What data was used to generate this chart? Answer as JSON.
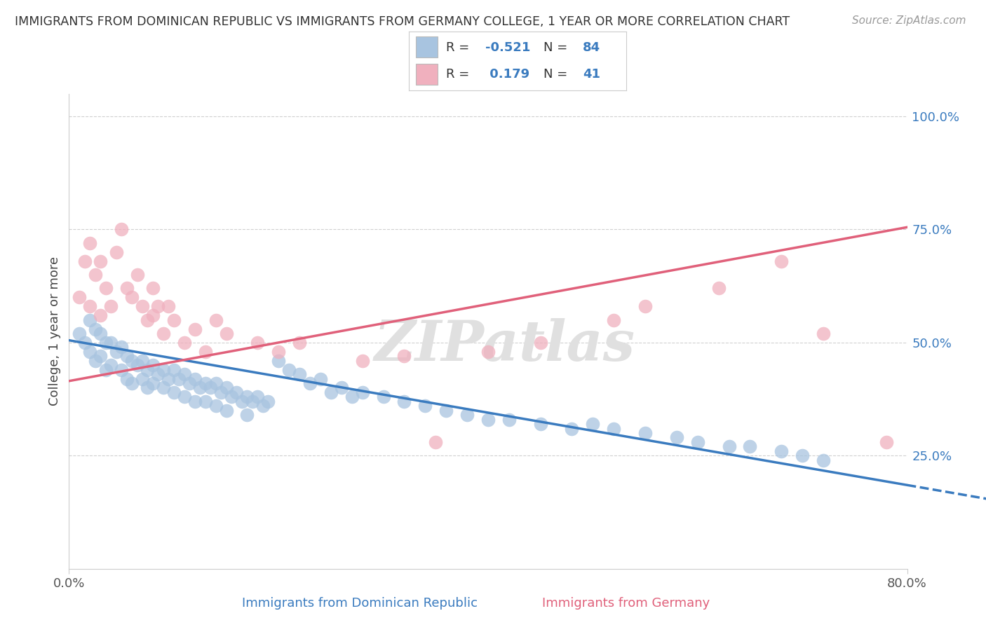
{
  "title": "IMMIGRANTS FROM DOMINICAN REPUBLIC VS IMMIGRANTS FROM GERMANY COLLEGE, 1 YEAR OR MORE CORRELATION CHART",
  "source": "Source: ZipAtlas.com",
  "ylabel": "College, 1 year or more",
  "xlabel_blue": "Immigrants from Dominican Republic",
  "xlabel_pink": "Immigrants from Germany",
  "xlim": [
    0.0,
    0.8
  ],
  "ylim": [
    0.0,
    1.05
  ],
  "y_ticks": [
    0.25,
    0.5,
    0.75,
    1.0
  ],
  "y_tick_labels": [
    "25.0%",
    "50.0%",
    "75.0%",
    "100.0%"
  ],
  "blue_R": -0.521,
  "blue_N": 84,
  "pink_R": 0.179,
  "pink_N": 41,
  "blue_color": "#a8c4e0",
  "pink_color": "#f0b0be",
  "blue_line_color": "#3a7bbf",
  "pink_line_color": "#e0607a",
  "blue_scatter_x": [
    0.01,
    0.015,
    0.02,
    0.02,
    0.025,
    0.025,
    0.03,
    0.03,
    0.035,
    0.035,
    0.04,
    0.04,
    0.045,
    0.05,
    0.05,
    0.055,
    0.055,
    0.06,
    0.06,
    0.065,
    0.07,
    0.07,
    0.075,
    0.075,
    0.08,
    0.08,
    0.085,
    0.09,
    0.09,
    0.095,
    0.1,
    0.1,
    0.105,
    0.11,
    0.11,
    0.115,
    0.12,
    0.12,
    0.125,
    0.13,
    0.13,
    0.135,
    0.14,
    0.14,
    0.145,
    0.15,
    0.15,
    0.155,
    0.16,
    0.165,
    0.17,
    0.17,
    0.175,
    0.18,
    0.185,
    0.19,
    0.2,
    0.21,
    0.22,
    0.23,
    0.24,
    0.25,
    0.26,
    0.27,
    0.28,
    0.3,
    0.32,
    0.34,
    0.36,
    0.38,
    0.4,
    0.42,
    0.45,
    0.48,
    0.5,
    0.52,
    0.55,
    0.58,
    0.6,
    0.63,
    0.65,
    0.68,
    0.7,
    0.72
  ],
  "blue_scatter_y": [
    0.52,
    0.5,
    0.55,
    0.48,
    0.53,
    0.46,
    0.52,
    0.47,
    0.5,
    0.44,
    0.5,
    0.45,
    0.48,
    0.49,
    0.44,
    0.47,
    0.42,
    0.46,
    0.41,
    0.45,
    0.46,
    0.42,
    0.44,
    0.4,
    0.45,
    0.41,
    0.43,
    0.44,
    0.4,
    0.42,
    0.44,
    0.39,
    0.42,
    0.43,
    0.38,
    0.41,
    0.42,
    0.37,
    0.4,
    0.41,
    0.37,
    0.4,
    0.41,
    0.36,
    0.39,
    0.4,
    0.35,
    0.38,
    0.39,
    0.37,
    0.38,
    0.34,
    0.37,
    0.38,
    0.36,
    0.37,
    0.46,
    0.44,
    0.43,
    0.41,
    0.42,
    0.39,
    0.4,
    0.38,
    0.39,
    0.38,
    0.37,
    0.36,
    0.35,
    0.34,
    0.33,
    0.33,
    0.32,
    0.31,
    0.32,
    0.31,
    0.3,
    0.29,
    0.28,
    0.27,
    0.27,
    0.26,
    0.25,
    0.24
  ],
  "pink_scatter_x": [
    0.01,
    0.015,
    0.02,
    0.02,
    0.025,
    0.03,
    0.03,
    0.035,
    0.04,
    0.045,
    0.05,
    0.055,
    0.06,
    0.065,
    0.07,
    0.075,
    0.08,
    0.08,
    0.085,
    0.09,
    0.095,
    0.1,
    0.11,
    0.12,
    0.13,
    0.14,
    0.15,
    0.18,
    0.2,
    0.22,
    0.28,
    0.32,
    0.35,
    0.4,
    0.45,
    0.52,
    0.55,
    0.62,
    0.68,
    0.72,
    0.78
  ],
  "pink_scatter_y": [
    0.6,
    0.68,
    0.72,
    0.58,
    0.65,
    0.68,
    0.56,
    0.62,
    0.58,
    0.7,
    0.75,
    0.62,
    0.6,
    0.65,
    0.58,
    0.55,
    0.62,
    0.56,
    0.58,
    0.52,
    0.58,
    0.55,
    0.5,
    0.53,
    0.48,
    0.55,
    0.52,
    0.5,
    0.48,
    0.5,
    0.46,
    0.47,
    0.28,
    0.48,
    0.5,
    0.55,
    0.58,
    0.62,
    0.68,
    0.52,
    0.28
  ],
  "blue_line_y0": 0.505,
  "blue_line_y1": 0.185,
  "pink_line_y0": 0.415,
  "pink_line_y1": 0.755,
  "watermark": "ZIPatlas",
  "background_color": "#ffffff",
  "grid_color": "#d0d0d0"
}
